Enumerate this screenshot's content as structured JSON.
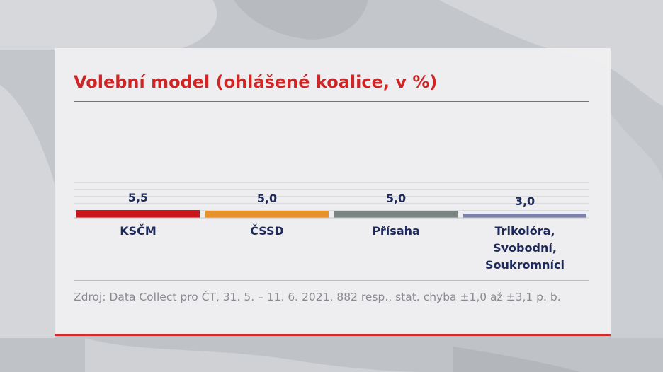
{
  "colors": {
    "title": "#d12424",
    "value_label": "#1e2a5c",
    "source_text": "#888a8f",
    "gridline": "#c7c8cc"
  },
  "chart_data": {
    "type": "bar",
    "title": "Volební model (ohlášené koalice, v %)",
    "categories": [
      "KSČM",
      "ČSSD",
      "Přísaha",
      "Trikolóra, Svobodní, Soukromníci"
    ],
    "category_lines": [
      [
        "KSČM"
      ],
      [
        "ČSSD"
      ],
      [
        "Přísaha"
      ],
      [
        "Trikolóra,",
        "Svobodní,",
        "Soukromníci"
      ]
    ],
    "values": [
      5.5,
      5.0,
      5.0,
      3.0
    ],
    "value_labels": [
      "5,5",
      "5,0",
      "5,0",
      "3,0"
    ],
    "bar_colors": [
      "#c8161b",
      "#e8922c",
      "#7a8483",
      "#7c7fa8"
    ],
    "ylim": [
      0,
      30
    ],
    "gridlines": [
      5,
      10,
      15,
      20,
      25
    ],
    "xlabel": "",
    "ylabel": ""
  },
  "source": "Zdroj: Data Collect pro ČT, 31. 5. – 11. 6. 2021, 882 resp., stat. chyba ±1,0 až ±3,1 p. b."
}
